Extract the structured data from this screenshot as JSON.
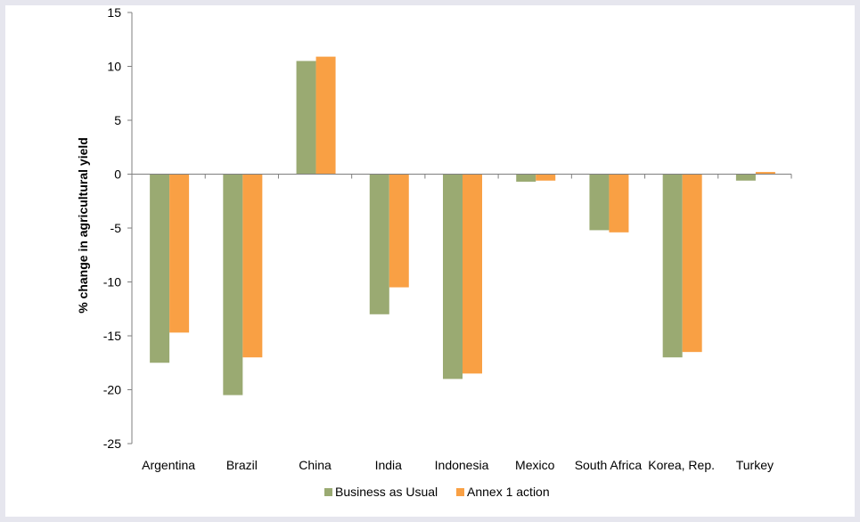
{
  "chart_data": {
    "type": "bar",
    "title": "",
    "xlabel": "",
    "ylabel": "% change in agricultural yield",
    "ylim": [
      -25,
      15
    ],
    "yticks": [
      15,
      10,
      5,
      0,
      -5,
      -10,
      -15,
      -20,
      -25
    ],
    "categories": [
      "Argentina",
      "Brazil",
      "China",
      "India",
      "Indonesia",
      "Mexico",
      "South Africa",
      "Korea, Rep.",
      "Turkey"
    ],
    "series": [
      {
        "name": "Business as Usual",
        "color": "#9aaa72",
        "values": [
          -17.5,
          -20.5,
          10.5,
          -13.0,
          -19.0,
          -0.7,
          -5.2,
          -17.0,
          -0.6
        ]
      },
      {
        "name": "Annex 1 action",
        "color": "#f9a044",
        "values": [
          -14.7,
          -17.0,
          10.9,
          -10.5,
          -18.5,
          -0.6,
          -5.4,
          -16.5,
          0.2
        ]
      }
    ],
    "grid": false,
    "legend_position": "bottom"
  }
}
